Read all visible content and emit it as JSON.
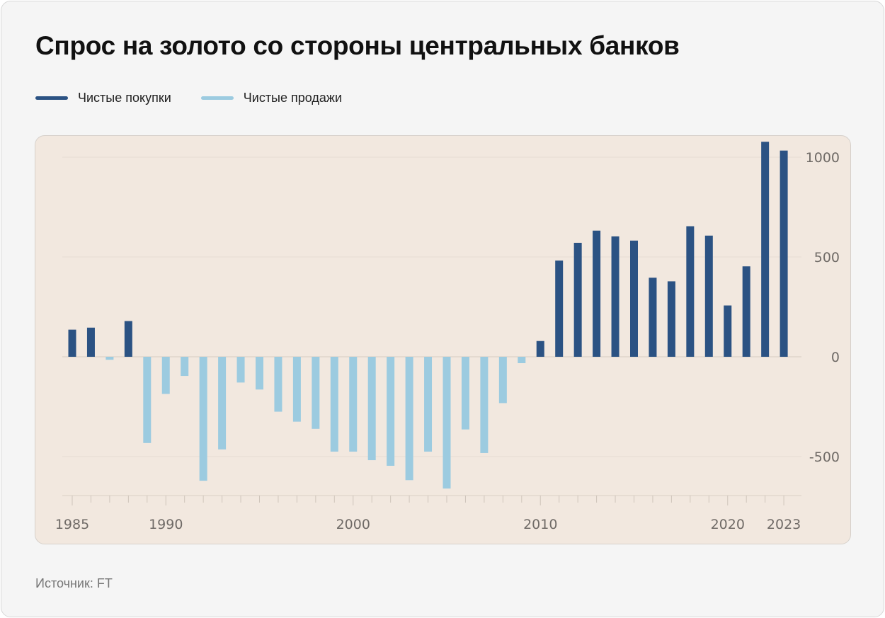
{
  "title": "Спрос на золото со стороны центральных банков",
  "legend": [
    {
      "label": "Чистые покупки",
      "color": "#2b5283"
    },
    {
      "label": "Чистые продажи",
      "color": "#9ccbe0"
    }
  ],
  "source": "Источник: FT",
  "chart_data": {
    "type": "bar",
    "title": "Спрос на золото со стороны центральных банков",
    "xlabel": "",
    "ylabel": "",
    "ylim": [
      -700,
      1100
    ],
    "y_ticks": [
      1000,
      500,
      0,
      -500
    ],
    "x_tick_labels": [
      "1985",
      "1990",
      "2000",
      "2010",
      "2020",
      "2023"
    ],
    "y_axis_position": "right",
    "legend_position": "top-left",
    "grid": true,
    "categories": [
      1985,
      1986,
      1987,
      1988,
      1989,
      1990,
      1991,
      1992,
      1993,
      1994,
      1995,
      1996,
      1997,
      1998,
      1999,
      2000,
      2001,
      2002,
      2003,
      2004,
      2005,
      2006,
      2007,
      2008,
      2009,
      2010,
      2011,
      2012,
      2013,
      2014,
      2015,
      2016,
      2017,
      2018,
      2019,
      2020,
      2021,
      2022,
      2023
    ],
    "values": [
      136,
      146,
      -15,
      179,
      -432,
      -186,
      -96,
      -621,
      -464,
      -129,
      -164,
      -275,
      -325,
      -361,
      -475,
      -475,
      -518,
      -546,
      -618,
      -475,
      -660,
      -364,
      -482,
      -232,
      -32,
      79,
      482,
      571,
      632,
      603,
      582,
      396,
      378,
      654,
      607,
      257,
      453,
      1077,
      1033
    ]
  }
}
